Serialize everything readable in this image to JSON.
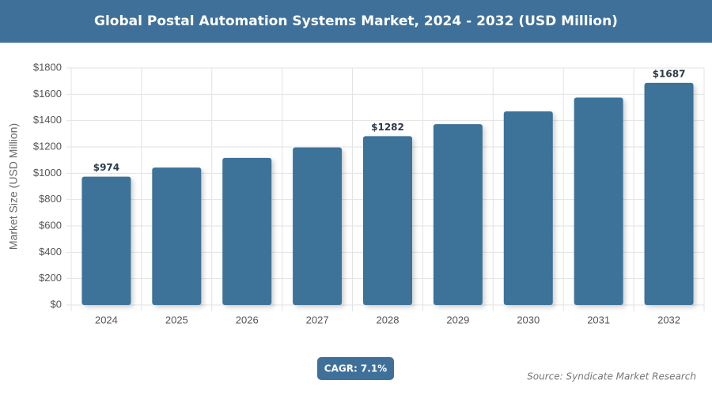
{
  "chart_data": {
    "type": "bar",
    "title": "Global Postal Automation Systems Market, 2024 - 2032 (USD Million)",
    "y_label": "Market Size (USD Million)",
    "categories": [
      "2024",
      "2025",
      "2026",
      "2027",
      "2028",
      "2029",
      "2030",
      "2031",
      "2032"
    ],
    "values": [
      974,
      1043,
      1117,
      1196,
      1282,
      1373,
      1470,
      1575,
      1687
    ],
    "value_labels": [
      "$974",
      null,
      null,
      null,
      "$1282",
      null,
      null,
      null,
      "$1687"
    ],
    "color": "#3d7299",
    "ylim": [
      0,
      1800
    ],
    "yticks": [
      {
        "value": 0,
        "label": "$0"
      },
      {
        "value": 200,
        "label": "$200"
      },
      {
        "value": 400,
        "label": "$400"
      },
      {
        "value": 600,
        "label": "$600"
      },
      {
        "value": 800,
        "label": "$800"
      },
      {
        "value": 1000,
        "label": "$1000"
      },
      {
        "value": 1200,
        "label": "$1200"
      },
      {
        "value": 1400,
        "label": "$1400"
      },
      {
        "value": 1600,
        "label": "$1600"
      },
      {
        "value": 1800,
        "label": "$1800"
      }
    ],
    "grid": true,
    "cagr": "CAGR: 7.1%",
    "source": "Source: Syndicate Market Research"
  }
}
